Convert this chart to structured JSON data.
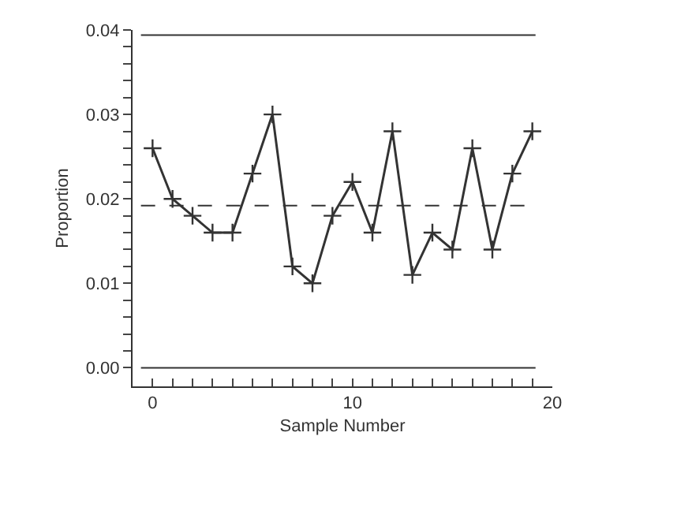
{
  "chart_data": {
    "type": "line",
    "xlabel": "Sample Number",
    "ylabel": "Proportion",
    "x": [
      0,
      1,
      2,
      3,
      4,
      5,
      6,
      7,
      8,
      9,
      10,
      11,
      12,
      13,
      14,
      15,
      16,
      17,
      18,
      19
    ],
    "series": [
      {
        "color": "#333333",
        "values": [
          0.026,
          0.02,
          0.018,
          0.016,
          0.016,
          0.023,
          0.03,
          0.012,
          0.01,
          0.018,
          0.022,
          0.016,
          0.028,
          0.011,
          0.016,
          0.014,
          0.026,
          0.014,
          0.023,
          0.028
        ]
      }
    ],
    "marker": "cross",
    "line_style": "solid",
    "xlim": [
      -1,
      20
    ],
    "xticks": [
      0,
      {
        "value": 1,
        "label": null
      },
      {
        "value": 2,
        "label": null
      },
      {
        "value": 3,
        "label": null
      },
      {
        "value": 4,
        "label": null
      },
      {
        "value": 5,
        "label": null
      },
      {
        "value": 6,
        "label": null
      },
      {
        "value": 7,
        "label": null
      },
      {
        "value": 8,
        "label": null
      },
      {
        "value": 9,
        "label": null
      },
      10,
      {
        "value": 11,
        "label": null
      },
      {
        "value": 12,
        "label": null
      },
      {
        "value": 13,
        "label": null
      },
      {
        "value": 14,
        "label": null
      },
      {
        "value": 15,
        "label": null
      },
      {
        "value": 16,
        "label": null
      },
      {
        "value": 17,
        "label": null
      },
      {
        "value": 18,
        "label": null
      },
      {
        "value": 19,
        "label": null
      },
      20
    ],
    "ylim": [
      -0.0022,
      0.04
    ],
    "yticks": [
      {
        "value": 0,
        "label": "0.00"
      },
      {
        "value": 0.002,
        "label": null
      },
      {
        "value": 0.004,
        "label": null
      },
      {
        "value": 0.006,
        "label": null
      },
      {
        "value": 0.008,
        "label": null
      },
      {
        "value": 0.01,
        "label": "0.01"
      },
      {
        "value": 0.012,
        "label": null
      },
      {
        "value": 0.014,
        "label": null
      },
      {
        "value": 0.016,
        "label": null
      },
      {
        "value": 0.018,
        "label": null
      },
      {
        "value": 0.02,
        "label": "0.02"
      },
      {
        "value": 0.022,
        "label": null
      },
      {
        "value": 0.024,
        "label": null
      },
      {
        "value": 0.026,
        "label": null
      },
      {
        "value": 0.028,
        "label": null
      },
      {
        "value": 0.03,
        "label": "0.03"
      },
      {
        "value": 0.032,
        "label": null
      },
      {
        "value": 0.034,
        "label": null
      },
      {
        "value": 0.036,
        "label": null
      },
      {
        "value": 0.038,
        "label": null
      },
      {
        "value": 0.04,
        "label": "0.04"
      }
    ],
    "ref_lines": [
      {
        "axis": "y",
        "value": 0.0394,
        "color": "#333333",
        "line_style": "solid"
      },
      {
        "axis": "y",
        "value": 0.0192,
        "color": "#333333",
        "line_style": "dashed"
      },
      {
        "axis": "y",
        "value": 0,
        "color": "#333333",
        "line_style": "solid"
      }
    ],
    "grid": false
  }
}
